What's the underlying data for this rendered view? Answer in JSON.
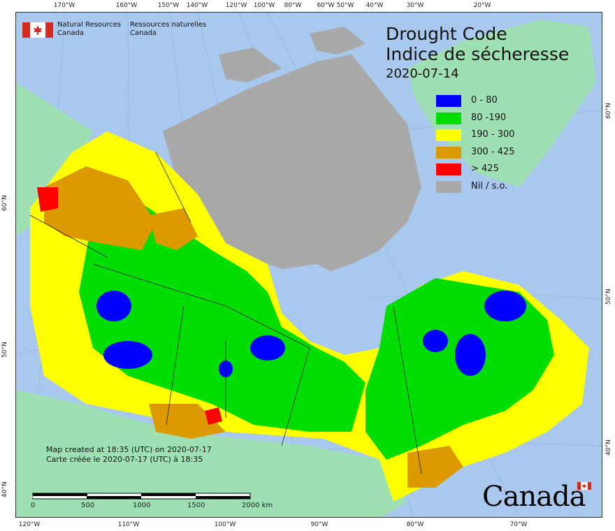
{
  "header": {
    "agency_en": [
      "Natural Resources",
      "Canada"
    ],
    "agency_fr": [
      "Ressources naturelles",
      "Canada"
    ]
  },
  "title": {
    "line1": "Drought Code",
    "line2": "Indice de sécheresse",
    "date": "2020-07-14"
  },
  "legend": [
    {
      "label": "0 - 80",
      "color": "#0000ff"
    },
    {
      "label": "80 -190",
      "color": "#00dd00"
    },
    {
      "label": "190 - 300",
      "color": "#ffff00"
    },
    {
      "label": "300 - 425",
      "color": "#dd9900"
    },
    {
      "label": "> 425",
      "color": "#ff0000"
    },
    {
      "label": "Nil / s.o.",
      "color": "#a9a9a9"
    }
  ],
  "credits": {
    "en": "Map created at 18:35 (UTC) on 2020-07-17",
    "fr": "Carte créée le 2020-07-17 (UTC) à 18:35"
  },
  "scale": {
    "labels": [
      "0",
      "500",
      "1000",
      "1500",
      "2000 km"
    ]
  },
  "graticule": {
    "top": [
      "170°W",
      "160°W",
      "150°W",
      "140°W",
      "120°W",
      "100°W",
      "80°W",
      "60°W",
      "50°W",
      "40°W",
      "30°W",
      "20°W"
    ],
    "bottom": [
      "120°W",
      "110°W",
      "100°W",
      "90°W",
      "80°W",
      "70°W"
    ],
    "left": [
      "60°N",
      "50°N",
      "40°N"
    ],
    "right": [
      "60°N",
      "50°N",
      "40°N"
    ]
  },
  "wordmark": "Canada"
}
